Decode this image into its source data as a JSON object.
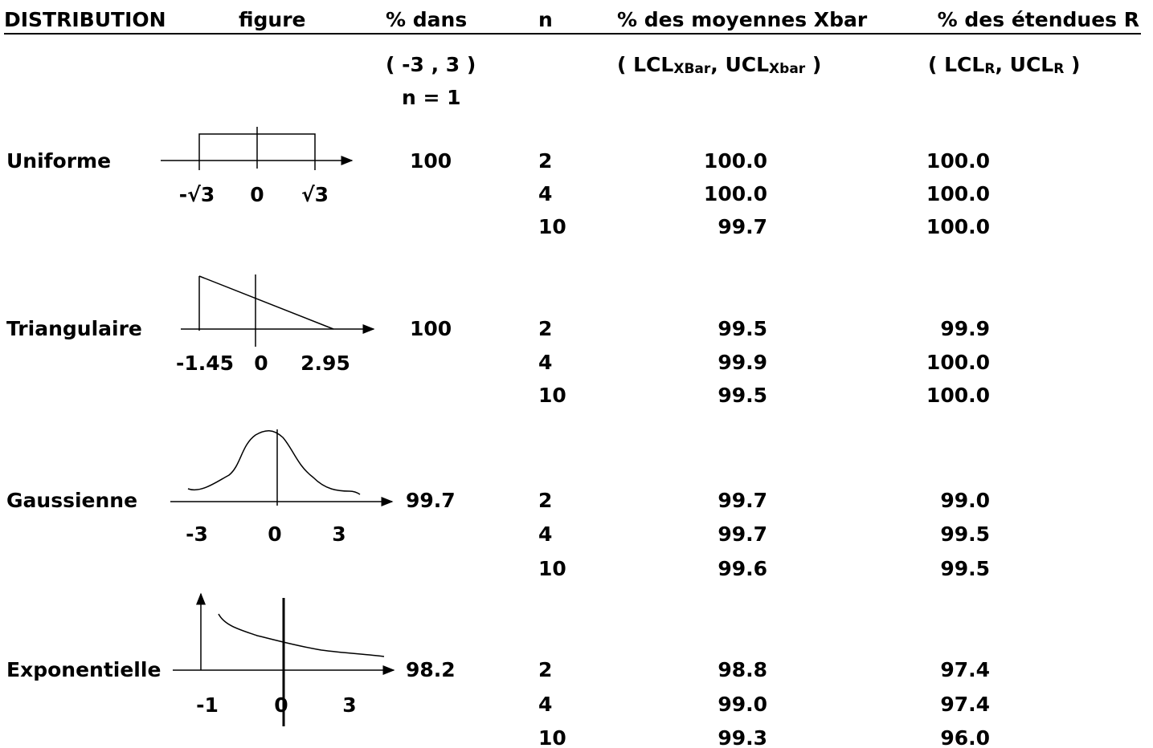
{
  "header": {
    "columns": [
      "DISTRIBUTION",
      "figure",
      "% dans",
      "n",
      "% des moyennes Xbar",
      "% des étendues R"
    ]
  },
  "subheader": {
    "range": "( -3 , 3 )",
    "n_note": "n = 1",
    "xbar_limits": [
      "( LCL",
      "XBar",
      ", UCL",
      "Xbar",
      " )"
    ],
    "r_limits": [
      "( LCL",
      "R",
      ", UCL",
      "R",
      " )"
    ]
  },
  "rows": [
    {
      "name": "Uniforme",
      "axis_labels": [
        "-√3",
        "0",
        "√3"
      ],
      "pct_n1": "100",
      "samples": [
        {
          "n": "2",
          "xbar": "100.0",
          "r": "100.0"
        },
        {
          "n": "4",
          "xbar": "100.0",
          "r": "100.0"
        },
        {
          "n": "10",
          "xbar": "99.7",
          "r": "100.0"
        }
      ]
    },
    {
      "name": "Triangulaire",
      "axis_labels": [
        "-1.45",
        "0",
        "2.95"
      ],
      "pct_n1": "100",
      "samples": [
        {
          "n": "2",
          "xbar": "99.5",
          "r": "99.9"
        },
        {
          "n": "4",
          "xbar": "99.9",
          "r": "100.0"
        },
        {
          "n": "10",
          "xbar": "99.5",
          "r": "100.0"
        }
      ]
    },
    {
      "name": "Gaussienne",
      "axis_labels": [
        "-3",
        "0",
        "3"
      ],
      "pct_n1": "99.7",
      "samples": [
        {
          "n": "2",
          "xbar": "99.7",
          "r": "99.0"
        },
        {
          "n": "4",
          "xbar": "99.7",
          "r": "99.5"
        },
        {
          "n": "10",
          "xbar": "99.6",
          "r": "99.5"
        }
      ]
    },
    {
      "name": "Exponentielle",
      "axis_labels": [
        "-1",
        "0",
        "3"
      ],
      "pct_n1": "98.2",
      "samples": [
        {
          "n": "2",
          "xbar": "98.8",
          "r": "97.4"
        },
        {
          "n": "4",
          "xbar": "99.0",
          "r": "97.4"
        },
        {
          "n": "10",
          "xbar": "99.3",
          "r": "96.0"
        }
      ]
    }
  ]
}
